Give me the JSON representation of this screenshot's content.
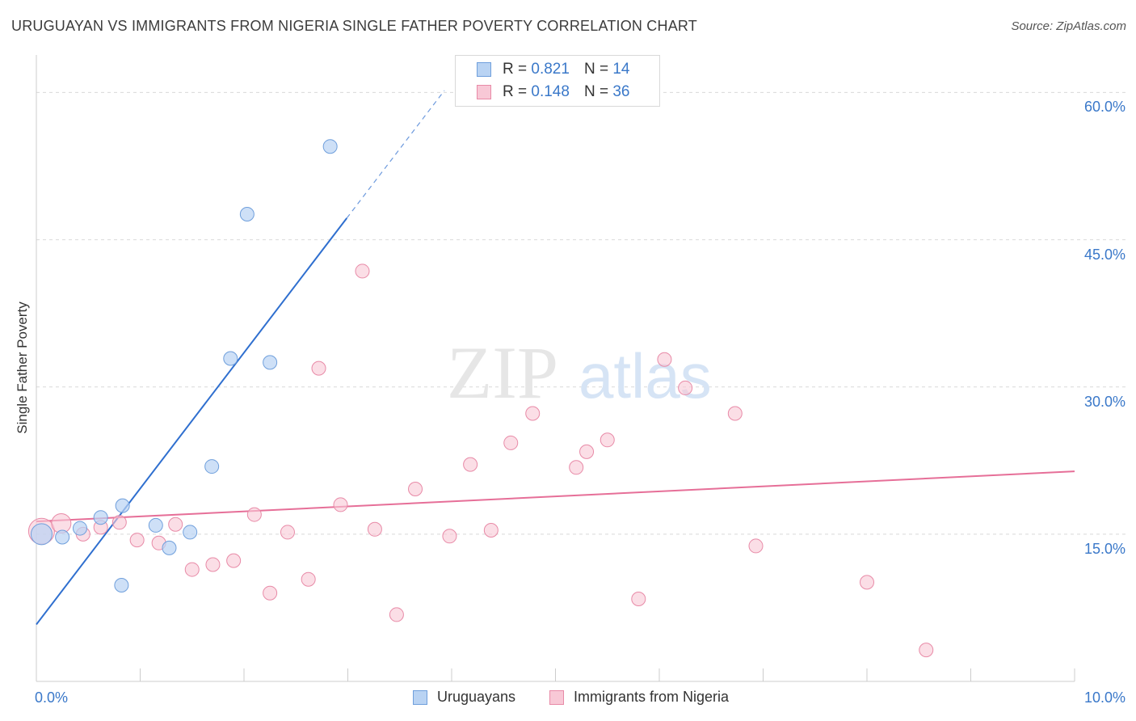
{
  "title": "URUGUAYAN VS IMMIGRANTS FROM NIGERIA SINGLE FATHER POVERTY CORRELATION CHART",
  "source": "Source: ZipAtlas.com",
  "watermark": {
    "zip": "ZIP",
    "atlas": "atlas"
  },
  "legend_top": [
    {
      "r_label": "R =",
      "r_value": "0.821",
      "n_label": "N =",
      "n_value": "14"
    },
    {
      "r_label": "R =",
      "r_value": "0.148",
      "n_label": "N =",
      "n_value": "36"
    }
  ],
  "colors": {
    "blue_fill": "#b9d3f3",
    "blue_stroke": "#6f9fdc",
    "blue_line": "#2f6fcf",
    "pink_fill": "#f8c8d6",
    "pink_stroke": "#e88aa7",
    "pink_line": "#e66f98",
    "grid": "#d9d9d9",
    "tick_text": "#3a78c9"
  },
  "chart_data": {
    "type": "scatter",
    "title": "URUGUAYAN VS IMMIGRANTS FROM NIGERIA SINGLE FATHER POVERTY CORRELATION CHART",
    "xlabel": "",
    "ylabel": "Single Father Poverty",
    "xlim": [
      0,
      10
    ],
    "ylim": [
      0,
      63
    ],
    "x_tick_labels": [
      "0.0%",
      "10.0%"
    ],
    "y_ticks": [
      15,
      30,
      45,
      60
    ],
    "y_tick_labels": [
      "15.0%",
      "30.0%",
      "45.0%",
      "60.0%"
    ],
    "series": [
      {
        "name": "Uruguayans",
        "color": "blue",
        "r": 0.821,
        "n": 14,
        "points": [
          {
            "x": 0.05,
            "y": 15.0
          },
          {
            "x": 0.25,
            "y": 14.7
          },
          {
            "x": 0.42,
            "y": 15.6
          },
          {
            "x": 0.62,
            "y": 16.7
          },
          {
            "x": 0.83,
            "y": 17.9
          },
          {
            "x": 0.82,
            "y": 9.8
          },
          {
            "x": 1.15,
            "y": 15.9
          },
          {
            "x": 1.28,
            "y": 13.6
          },
          {
            "x": 1.48,
            "y": 15.2
          },
          {
            "x": 1.69,
            "y": 21.9
          },
          {
            "x": 1.87,
            "y": 32.9
          },
          {
            "x": 2.25,
            "y": 32.5
          },
          {
            "x": 2.03,
            "y": 47.6
          },
          {
            "x": 2.83,
            "y": 54.5
          }
        ],
        "trend": {
          "x0": 0.0,
          "y0": 5.8,
          "x1": 2.99,
          "y1": 47.2,
          "dash_x1": 3.93,
          "dash_y1": 60.2
        }
      },
      {
        "name": "Immigrants from Nigeria",
        "color": "pink",
        "r": 0.148,
        "n": 36,
        "points": [
          {
            "x": 0.05,
            "y": 15.3
          },
          {
            "x": 0.24,
            "y": 16.1
          },
          {
            "x": 0.45,
            "y": 15.0
          },
          {
            "x": 0.62,
            "y": 15.7
          },
          {
            "x": 0.8,
            "y": 16.2
          },
          {
            "x": 0.97,
            "y": 14.4
          },
          {
            "x": 1.18,
            "y": 14.1
          },
          {
            "x": 1.34,
            "y": 16.0
          },
          {
            "x": 1.5,
            "y": 11.4
          },
          {
            "x": 1.7,
            "y": 11.9
          },
          {
            "x": 1.9,
            "y": 12.3
          },
          {
            "x": 2.1,
            "y": 17.0
          },
          {
            "x": 2.25,
            "y": 9.0
          },
          {
            "x": 2.42,
            "y": 15.2
          },
          {
            "x": 2.62,
            "y": 10.4
          },
          {
            "x": 2.72,
            "y": 31.9
          },
          {
            "x": 2.93,
            "y": 18.0
          },
          {
            "x": 3.14,
            "y": 41.8
          },
          {
            "x": 3.26,
            "y": 15.5
          },
          {
            "x": 3.47,
            "y": 6.8
          },
          {
            "x": 3.65,
            "y": 19.6
          },
          {
            "x": 3.98,
            "y": 14.8
          },
          {
            "x": 4.18,
            "y": 22.1
          },
          {
            "x": 4.38,
            "y": 15.4
          },
          {
            "x": 4.57,
            "y": 24.3
          },
          {
            "x": 4.78,
            "y": 27.3
          },
          {
            "x": 5.2,
            "y": 21.8
          },
          {
            "x": 5.3,
            "y": 23.4
          },
          {
            "x": 5.5,
            "y": 24.6
          },
          {
            "x": 5.8,
            "y": 8.4
          },
          {
            "x": 6.05,
            "y": 32.8
          },
          {
            "x": 6.25,
            "y": 29.9
          },
          {
            "x": 6.73,
            "y": 27.3
          },
          {
            "x": 6.93,
            "y": 13.8
          },
          {
            "x": 8.0,
            "y": 10.1
          },
          {
            "x": 8.57,
            "y": 3.2
          }
        ],
        "trend": {
          "x0": 0.0,
          "y0": 16.3,
          "x1": 10.0,
          "y1": 21.4
        }
      }
    ]
  },
  "legend_bottom": [
    "Uruguayans",
    "Immigrants from Nigeria"
  ]
}
